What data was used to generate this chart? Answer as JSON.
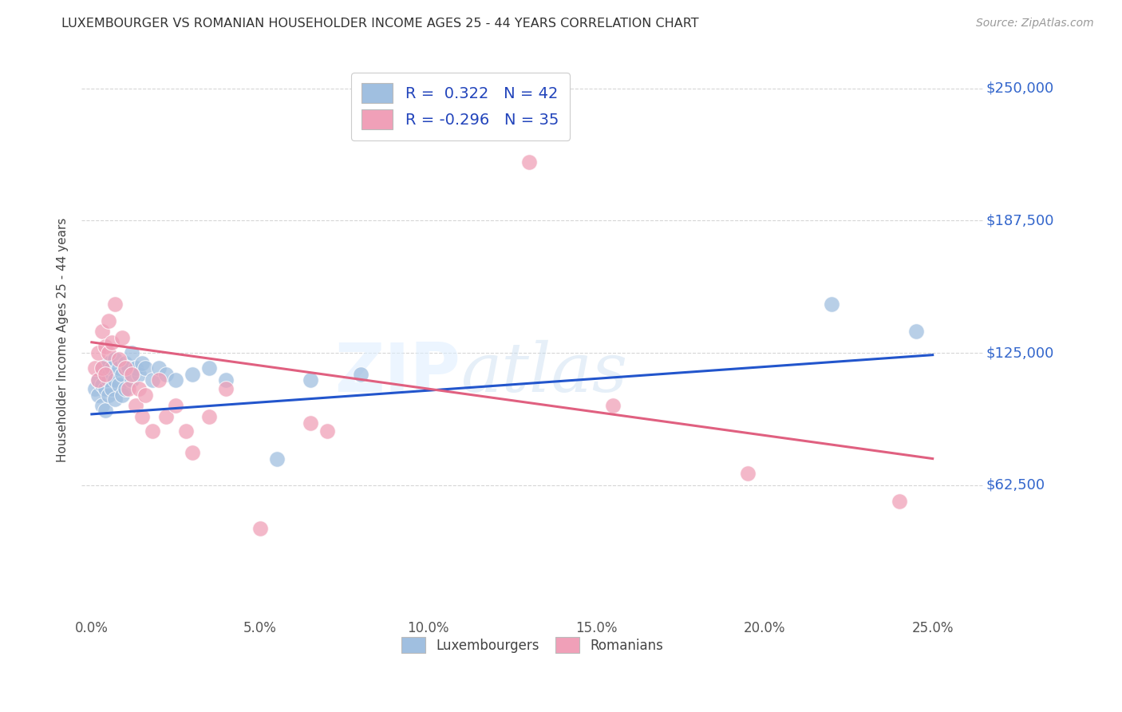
{
  "title": "LUXEMBOURGER VS ROMANIAN HOUSEHOLDER INCOME AGES 25 - 44 YEARS CORRELATION CHART",
  "source": "Source: ZipAtlas.com",
  "ylabel": "Householder Income Ages 25 - 44 years",
  "xlabel_ticks": [
    "0.0%",
    "5.0%",
    "10.0%",
    "15.0%",
    "20.0%",
    "25.0%"
  ],
  "xlabel_vals": [
    0.0,
    0.05,
    0.1,
    0.15,
    0.2,
    0.25
  ],
  "ytick_labels": [
    "$62,500",
    "$125,000",
    "$187,500",
    "$250,000"
  ],
  "ytick_vals": [
    62500,
    125000,
    187500,
    250000
  ],
  "ylim": [
    0,
    262500
  ],
  "xlim": [
    -0.003,
    0.265
  ],
  "legend_entries": [
    {
      "label": "R =  0.322   N = 42",
      "color": "#adc8e8"
    },
    {
      "label": "R = -0.296   N = 35",
      "color": "#f4afc0"
    }
  ],
  "legend_bottom": [
    "Luxembourgers",
    "Romanians"
  ],
  "lux_color": "#a0bfe0",
  "rom_color": "#f0a0b8",
  "lux_line_color": "#2255cc",
  "rom_line_color": "#e06080",
  "background_color": "#ffffff",
  "watermark_zip": "ZIP",
  "watermark_atlas": "atlas",
  "lux_points": [
    [
      0.001,
      108000
    ],
    [
      0.002,
      112000
    ],
    [
      0.002,
      105000
    ],
    [
      0.003,
      118000
    ],
    [
      0.003,
      110000
    ],
    [
      0.003,
      100000
    ],
    [
      0.004,
      115000
    ],
    [
      0.004,
      108000
    ],
    [
      0.004,
      98000
    ],
    [
      0.005,
      120000
    ],
    [
      0.005,
      112000
    ],
    [
      0.005,
      105000
    ],
    [
      0.006,
      118000
    ],
    [
      0.006,
      108000
    ],
    [
      0.007,
      122000
    ],
    [
      0.007,
      112000
    ],
    [
      0.007,
      103000
    ],
    [
      0.008,
      118000
    ],
    [
      0.008,
      110000
    ],
    [
      0.009,
      115000
    ],
    [
      0.009,
      105000
    ],
    [
      0.01,
      120000
    ],
    [
      0.01,
      108000
    ],
    [
      0.011,
      118000
    ],
    [
      0.012,
      125000
    ],
    [
      0.012,
      112000
    ],
    [
      0.013,
      118000
    ],
    [
      0.014,
      115000
    ],
    [
      0.015,
      120000
    ],
    [
      0.016,
      118000
    ],
    [
      0.018,
      112000
    ],
    [
      0.02,
      118000
    ],
    [
      0.022,
      115000
    ],
    [
      0.025,
      112000
    ],
    [
      0.03,
      115000
    ],
    [
      0.035,
      118000
    ],
    [
      0.04,
      112000
    ],
    [
      0.055,
      75000
    ],
    [
      0.065,
      112000
    ],
    [
      0.08,
      115000
    ],
    [
      0.22,
      148000
    ],
    [
      0.245,
      135000
    ]
  ],
  "rom_points": [
    [
      0.001,
      118000
    ],
    [
      0.002,
      125000
    ],
    [
      0.002,
      112000
    ],
    [
      0.003,
      135000
    ],
    [
      0.003,
      118000
    ],
    [
      0.004,
      128000
    ],
    [
      0.004,
      115000
    ],
    [
      0.005,
      140000
    ],
    [
      0.005,
      125000
    ],
    [
      0.006,
      130000
    ],
    [
      0.007,
      148000
    ],
    [
      0.008,
      122000
    ],
    [
      0.009,
      132000
    ],
    [
      0.01,
      118000
    ],
    [
      0.011,
      108000
    ],
    [
      0.012,
      115000
    ],
    [
      0.013,
      100000
    ],
    [
      0.014,
      108000
    ],
    [
      0.015,
      95000
    ],
    [
      0.016,
      105000
    ],
    [
      0.018,
      88000
    ],
    [
      0.02,
      112000
    ],
    [
      0.022,
      95000
    ],
    [
      0.025,
      100000
    ],
    [
      0.028,
      88000
    ],
    [
      0.03,
      78000
    ],
    [
      0.035,
      95000
    ],
    [
      0.04,
      108000
    ],
    [
      0.05,
      42000
    ],
    [
      0.065,
      92000
    ],
    [
      0.07,
      88000
    ],
    [
      0.13,
      215000
    ],
    [
      0.155,
      100000
    ],
    [
      0.195,
      68000
    ],
    [
      0.24,
      55000
    ]
  ],
  "lux_trendline": [
    [
      0.0,
      96000
    ],
    [
      0.25,
      124000
    ]
  ],
  "rom_trendline": [
    [
      0.0,
      130000
    ],
    [
      0.25,
      75000
    ]
  ]
}
